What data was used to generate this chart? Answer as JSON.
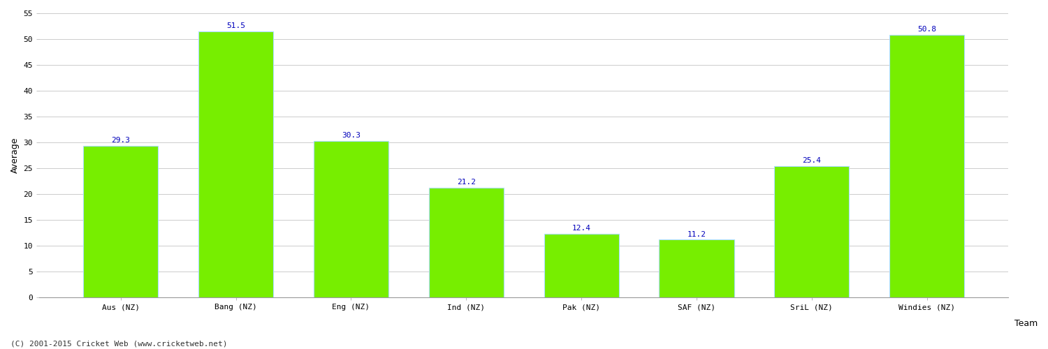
{
  "categories": [
    "Aus (NZ)",
    "Bang (NZ)",
    "Eng (NZ)",
    "Ind (NZ)",
    "Pak (NZ)",
    "SAF (NZ)",
    "SriL (NZ)",
    "Windies (NZ)"
  ],
  "values": [
    29.3,
    51.5,
    30.3,
    21.2,
    12.4,
    11.2,
    25.4,
    50.8
  ],
  "bar_color": "#77ee00",
  "bar_edge_color": "#aaddff",
  "label_color": "#0000bb",
  "xlabel": "Team",
  "ylabel": "Average",
  "ylim": [
    0,
    55
  ],
  "yticks": [
    0,
    5,
    10,
    15,
    20,
    25,
    30,
    35,
    40,
    45,
    50,
    55
  ],
  "grid_color": "#cccccc",
  "background_color": "#ffffff",
  "fig_width": 15.0,
  "fig_height": 5.0,
  "dpi": 100,
  "label_fontsize": 8,
  "axis_label_fontsize": 9,
  "tick_fontsize": 8,
  "footer_text": "(C) 2001-2015 Cricket Web (www.cricketweb.net)",
  "footer_fontsize": 8
}
